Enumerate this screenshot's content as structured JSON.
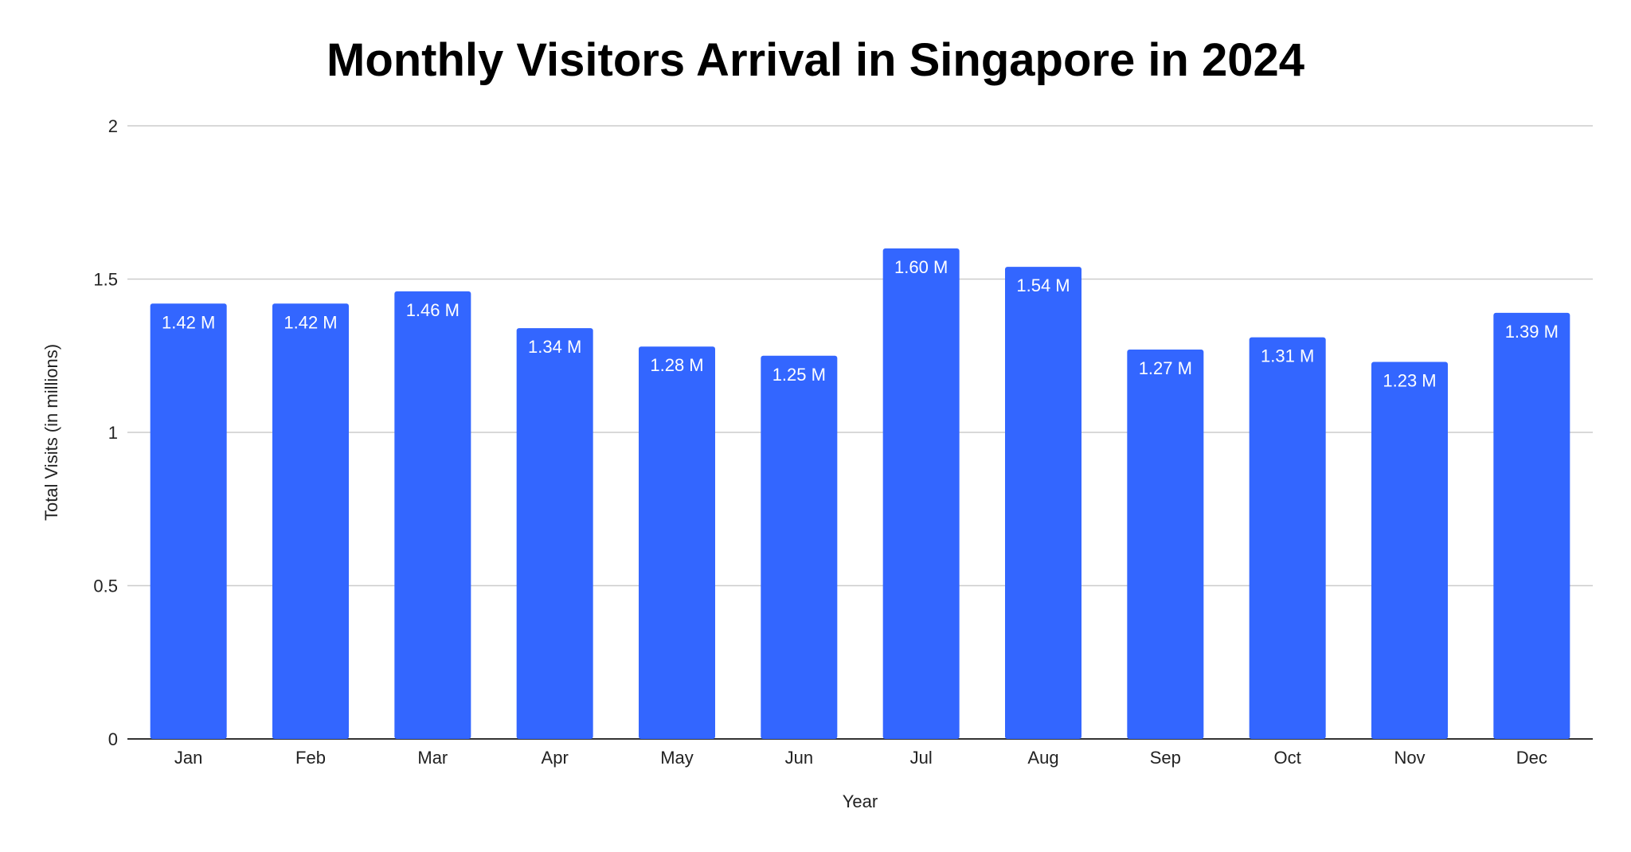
{
  "chart_data": {
    "type": "bar",
    "title": "Monthly Visitors Arrival in Singapore in 2024",
    "xlabel": "Year",
    "ylabel": "Total Visits (in millions)",
    "categories": [
      "Jan",
      "Feb",
      "Mar",
      "Apr",
      "May",
      "Jun",
      "Jul",
      "Aug",
      "Sep",
      "Oct",
      "Nov",
      "Dec"
    ],
    "values": [
      1.42,
      1.42,
      1.46,
      1.34,
      1.28,
      1.25,
      1.6,
      1.54,
      1.27,
      1.31,
      1.23,
      1.39
    ],
    "data_labels": [
      "1.42 M",
      "1.42 M",
      "1.46 M",
      "1.34 M",
      "1.28 M",
      "1.25 M",
      "1.60 M",
      "1.54 M",
      "1.27 M",
      "1.31 M",
      "1.23 M",
      "1.39 M"
    ],
    "ylim": [
      0,
      2
    ],
    "yticks": [
      0,
      0.5,
      1,
      1.5,
      2
    ],
    "ytick_labels": [
      "0",
      "0.5",
      "1",
      "1.5",
      "2"
    ],
    "grid": true,
    "legend": "none",
    "colors": {
      "bar": "#3366ff",
      "grid": "#cccccc",
      "axis": "#333333"
    }
  }
}
